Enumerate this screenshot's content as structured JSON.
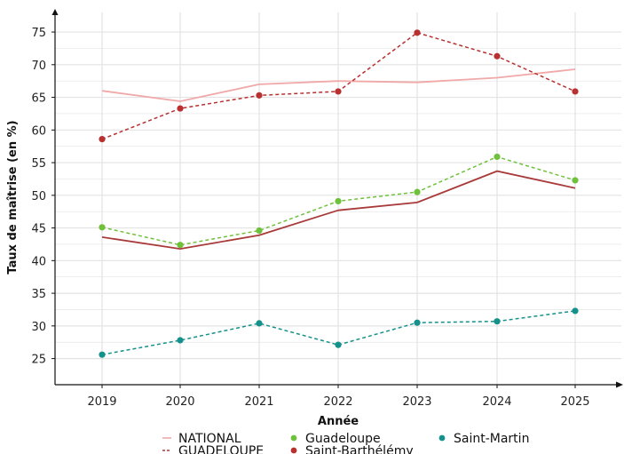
{
  "chart_data": {
    "type": "line",
    "xlabel": "Année",
    "ylabel": "Taux de maîtrise (en %)",
    "categories": [
      "2019",
      "2020",
      "2021",
      "2022",
      "2023",
      "2024",
      "2025"
    ],
    "ylim": [
      21,
      78
    ],
    "yticks": [
      25,
      30,
      35,
      40,
      45,
      50,
      55,
      60,
      65,
      70,
      75
    ],
    "grid": true,
    "legend_position": "bottom",
    "series": [
      {
        "name": "NATIONAL",
        "color": "#f0a8a8",
        "style": "solid",
        "markers": false,
        "values": [
          66.0,
          64.4,
          67.0,
          67.5,
          67.3,
          68.0,
          69.3
        ]
      },
      {
        "name": "GUADELOUPE",
        "color": "#a93a3a",
        "style": "solid",
        "markers": false,
        "values": [
          43.6,
          41.8,
          43.9,
          47.7,
          48.9,
          53.7,
          51.1
        ]
      },
      {
        "name": "Guadeloupe",
        "color": "#6fc13c",
        "style": "dashed",
        "markers": true,
        "values": [
          45.1,
          42.4,
          44.6,
          49.1,
          50.5,
          55.9,
          52.3
        ]
      },
      {
        "name": "Saint-Barthélémy",
        "color": "#b83030",
        "style": "dashed",
        "markers": true,
        "values": [
          58.6,
          63.3,
          65.3,
          65.9,
          74.9,
          71.3,
          65.9
        ]
      },
      {
        "name": "Saint-Martin",
        "color": "#15918c",
        "style": "dashed",
        "markers": true,
        "values": [
          25.6,
          27.8,
          30.4,
          27.1,
          30.5,
          30.7,
          32.3
        ]
      }
    ]
  }
}
